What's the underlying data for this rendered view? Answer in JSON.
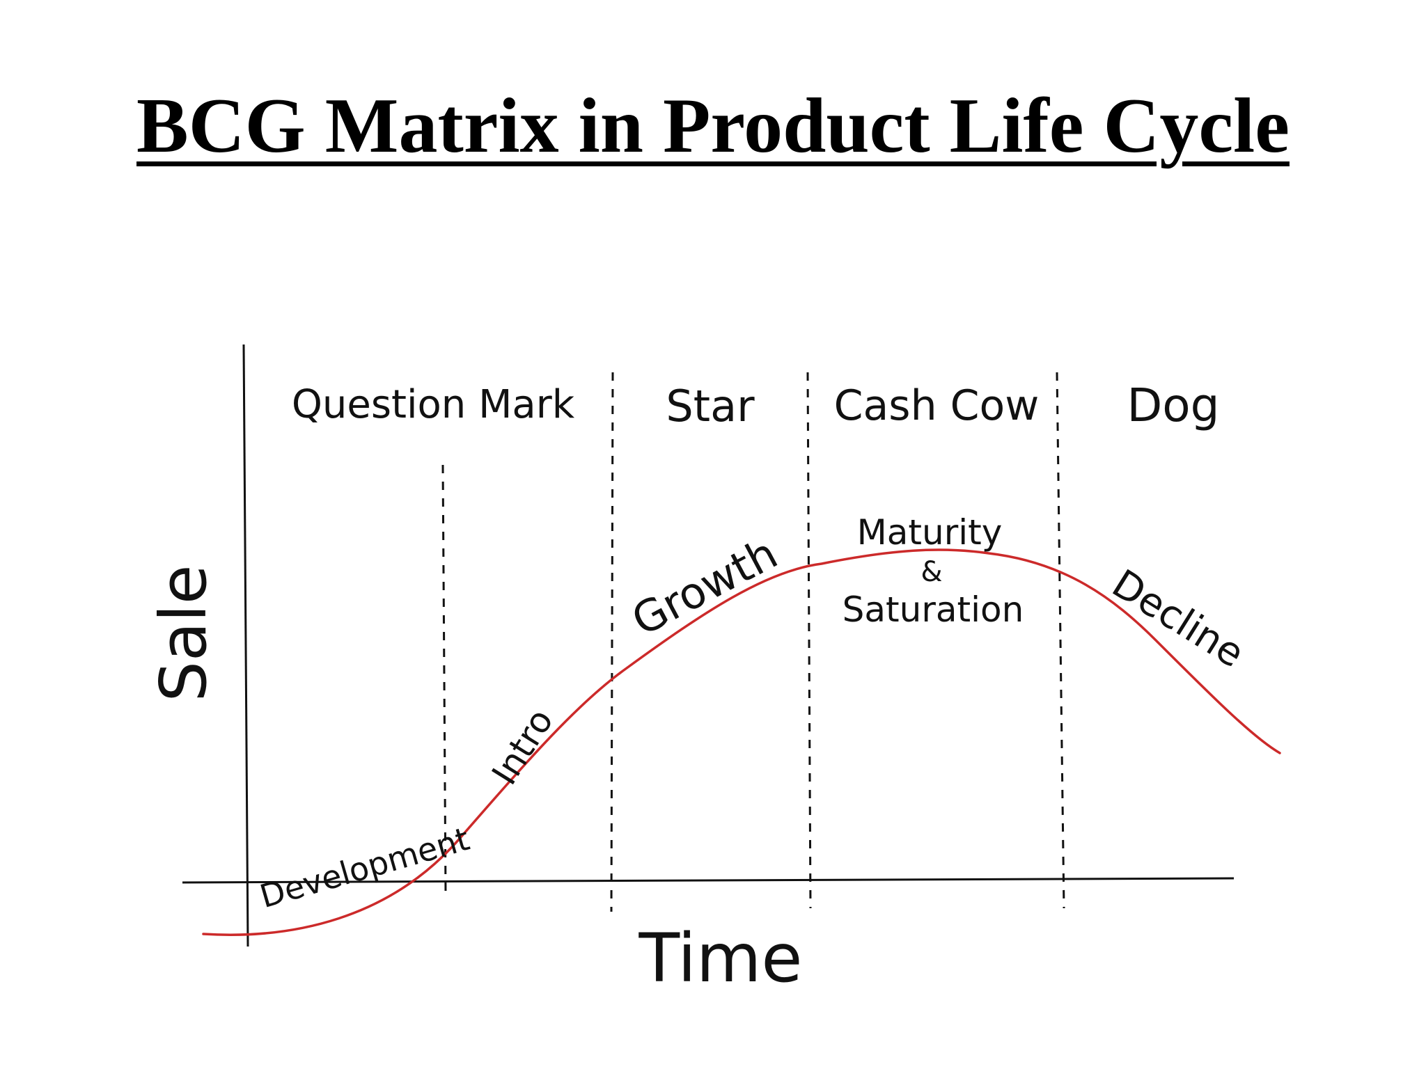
{
  "title": "BCG Matrix in Product Life Cycle",
  "axes": {
    "y_label": "Sale",
    "x_label": "Time"
  },
  "bcg_categories": [
    "Question Mark",
    "Star",
    "Cash Cow",
    "Dog"
  ],
  "lifecycle_stages": {
    "development": "Development",
    "intro": "Intro",
    "growth": "Growth",
    "maturity": "Maturity",
    "ampersand": "&",
    "saturation": "Saturation",
    "decline": "Decline"
  },
  "colors": {
    "curve": "#cc2a2a",
    "ink": "#111111"
  }
}
